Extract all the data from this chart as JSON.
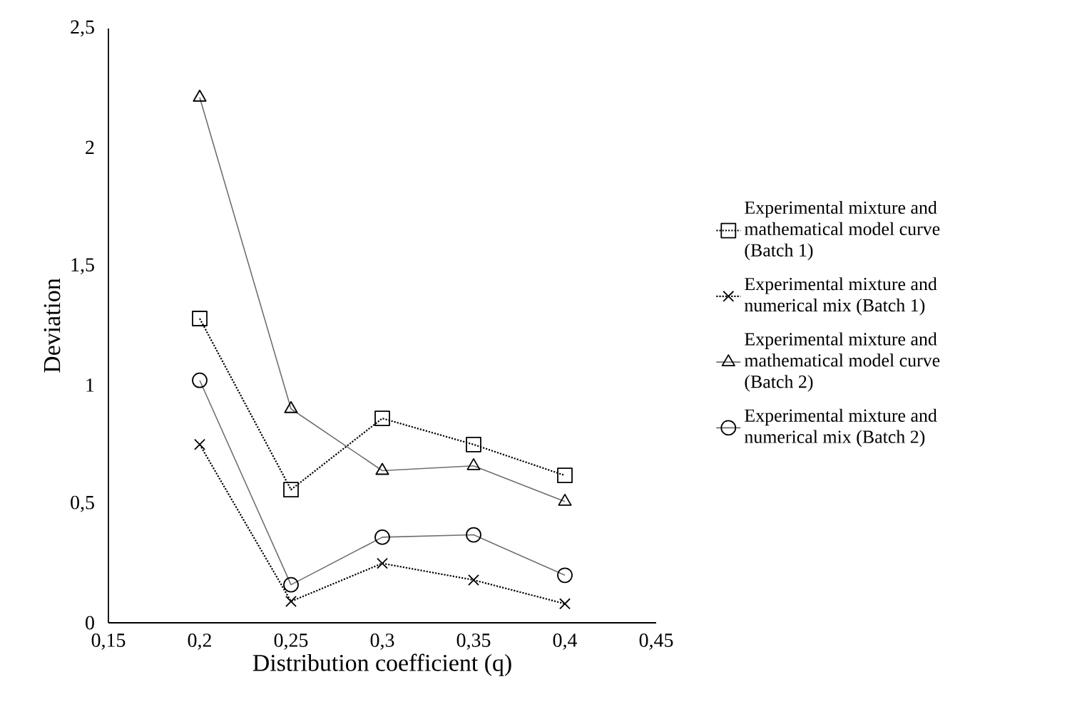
{
  "chart_data": {
    "type": "line",
    "xlabel": "Distribution coefficient (q)",
    "ylabel": "Deviation",
    "x": [
      0.2,
      0.25,
      0.3,
      0.35,
      0.4
    ],
    "xlim": [
      0.15,
      0.45
    ],
    "ylim": [
      0,
      2.5
    ],
    "xticks": [
      {
        "value": 0.15,
        "label": "0,15"
      },
      {
        "value": 0.2,
        "label": "0,2"
      },
      {
        "value": 0.25,
        "label": "0,25"
      },
      {
        "value": 0.3,
        "label": "0,3"
      },
      {
        "value": 0.35,
        "label": "0,35"
      },
      {
        "value": 0.4,
        "label": "0,4"
      },
      {
        "value": 0.45,
        "label": "0,45"
      }
    ],
    "yticks": [
      0,
      {
        "value": 0.5,
        "label": "0,5"
      },
      1,
      {
        "value": 1.5,
        "label": "1,5"
      },
      2,
      {
        "value": 2.5,
        "label": "2,5"
      }
    ],
    "legend": "right",
    "series": [
      {
        "name": "Experimental mixture and mathematical model curve (Batch 1)",
        "color": "#000000",
        "marker": "square",
        "line_style": "dotted",
        "values": [
          1.28,
          0.56,
          0.86,
          0.75,
          0.62
        ]
      },
      {
        "name": "Experimental mixture and numerical mix (Batch 1)",
        "color": "#000000",
        "marker": "cross",
        "line_style": "dotted",
        "values": [
          0.75,
          0.09,
          0.25,
          0.18,
          0.08
        ]
      },
      {
        "name": "Experimental mixture and mathematical model curve (Batch 2)",
        "color": "#6f6f6f",
        "marker": "triangle",
        "line_style": "solid",
        "values": [
          2.21,
          0.9,
          0.64,
          0.66,
          0.51
        ]
      },
      {
        "name": "Experimental mixture and numerical mix (Batch 2)",
        "color": "#6f6f6f",
        "marker": "circle",
        "line_style": "solid",
        "values": [
          1.02,
          0.16,
          0.36,
          0.37,
          0.2
        ]
      }
    ]
  }
}
